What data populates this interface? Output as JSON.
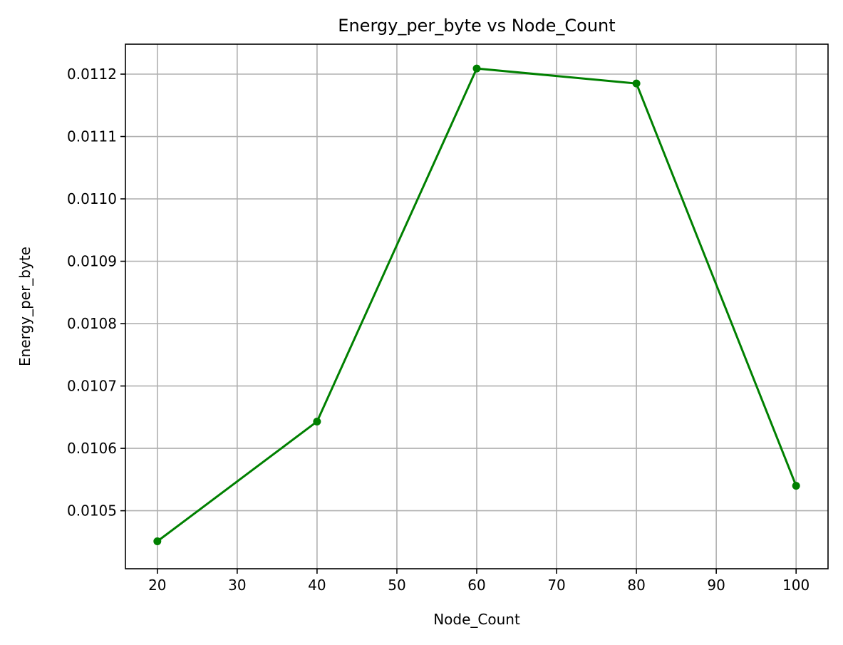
{
  "chart_data": {
    "type": "line",
    "title": "Energy_per_byte vs Node_Count",
    "xlabel": "Node_Count",
    "ylabel": "Energy_per_byte",
    "x": [
      20,
      40,
      60,
      80,
      100
    ],
    "series": [
      {
        "values": [
          0.010451,
          0.010643,
          0.011209,
          0.011185,
          0.01054
        ],
        "color": "#008000",
        "marker": "circle"
      }
    ],
    "xlim": [
      16,
      104
    ],
    "ylim": [
      0.010407,
      0.011248
    ],
    "xticks": [
      20,
      30,
      40,
      50,
      60,
      70,
      80,
      90,
      100
    ],
    "xtick_labels": [
      "20",
      "30",
      "40",
      "50",
      "60",
      "70",
      "80",
      "90",
      "100"
    ],
    "yticks": [
      0.0105,
      0.0106,
      0.0107,
      0.0108,
      0.0109,
      0.011,
      0.0111,
      0.0112
    ],
    "ytick_labels": [
      "0.0105",
      "0.0106",
      "0.0107",
      "0.0108",
      "0.0109",
      "0.0110",
      "0.0111",
      "0.0112"
    ],
    "grid": true,
    "grid_color": "#b0b0b0",
    "legend": "none"
  }
}
